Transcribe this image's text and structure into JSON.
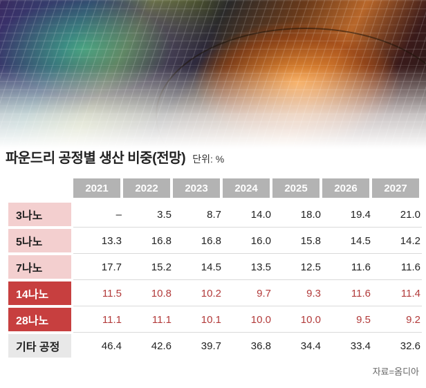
{
  "title": "파운드리 공정별 생산 비중(전망)",
  "unit": "단위: %",
  "years": [
    "2021",
    "2022",
    "2023",
    "2024",
    "2025",
    "2026",
    "2027"
  ],
  "rows": [
    {
      "label": "3나노",
      "values": [
        "–",
        "3.5",
        "8.7",
        "14.0",
        "18.0",
        "19.4",
        "21.0"
      ]
    },
    {
      "label": "5나노",
      "values": [
        "13.3",
        "16.8",
        "16.8",
        "16.0",
        "15.8",
        "14.5",
        "14.2"
      ]
    },
    {
      "label": "7나노",
      "values": [
        "17.7",
        "15.2",
        "14.5",
        "13.5",
        "12.5",
        "11.6",
        "11.6"
      ]
    },
    {
      "label": "14나노",
      "values": [
        "11.5",
        "10.8",
        "10.2",
        "9.7",
        "9.3",
        "11.6",
        "11.4"
      ]
    },
    {
      "label": "28나노",
      "values": [
        "11.1",
        "11.1",
        "10.1",
        "10.0",
        "10.0",
        "9.5",
        "9.2"
      ]
    },
    {
      "label": "기타 공정",
      "values": [
        "46.4",
        "42.6",
        "39.7",
        "36.8",
        "34.4",
        "33.4",
        "32.6"
      ]
    }
  ],
  "source": "자료=옴디아",
  "colors": {
    "header_bg": "#b3b3b3",
    "label_pink": "#f3cfcf",
    "label_red": "#c73f3f",
    "label_gray": "#e8e8e8",
    "highlight_text": "#b23a3a"
  }
}
